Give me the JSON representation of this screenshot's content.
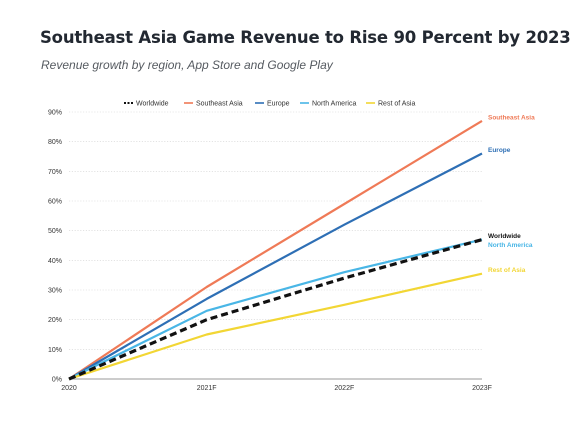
{
  "chart_data": {
    "type": "line",
    "title": "Southeast Asia Game Revenue to Rise 90 Percent by 2023",
    "subtitle": "Revenue growth by region, App Store and Google Play",
    "categories": [
      "2020",
      "2021F",
      "2022F",
      "2023F"
    ],
    "ylim": [
      0,
      90
    ],
    "yticks": [
      "0%",
      "10%",
      "20%",
      "30%",
      "40%",
      "50%",
      "60%",
      "70%",
      "80%",
      "90%"
    ],
    "grid": true,
    "legend_position": "top",
    "series": [
      {
        "name": "Worldwide",
        "values": [
          0,
          20,
          34,
          47
        ],
        "color": "#111111",
        "dashed": true,
        "end_label": "Worldwide"
      },
      {
        "name": "Southeast Asia",
        "values": [
          0,
          31,
          59,
          87
        ],
        "color": "#ef7a57",
        "dashed": false,
        "end_label": "Southeast Asia"
      },
      {
        "name": "Europe",
        "values": [
          0,
          27,
          52,
          76
        ],
        "color": "#2e6fb5",
        "dashed": false,
        "end_label": "Europe"
      },
      {
        "name": "North America",
        "values": [
          0,
          23,
          36,
          47
        ],
        "color": "#49b6e6",
        "dashed": false,
        "end_label": "North America"
      },
      {
        "name": "Rest of Asia",
        "values": [
          0,
          15,
          25,
          35.5
        ],
        "color": "#f2d634",
        "dashed": false,
        "end_label": "Rest of Asia"
      }
    ]
  }
}
